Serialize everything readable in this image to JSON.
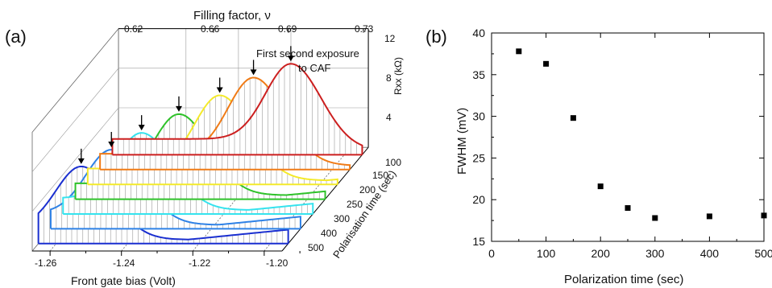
{
  "chart_data": [
    {
      "type": "line",
      "panel_label": "(a)",
      "top_axis_title": "Filling factor, ν",
      "top_ticks": [
        "0.62",
        "0.66",
        "0.69",
        "0.73"
      ],
      "xlabel": "Front gate bias (Volt)",
      "x_ticks": [
        "-1.26",
        "-1.24",
        "-1.22",
        "-1.20"
      ],
      "z_axis_label": "Rxx (kΩ)",
      "z_ticks": [
        "4",
        "8",
        "12"
      ],
      "depth_axis_label": "Polarisation time (sec)",
      "depth_ticks": [
        "100",
        "150",
        "200",
        "250",
        "300",
        "400",
        "500"
      ],
      "annotation": [
        "First second exposure",
        "to CAF"
      ],
      "series": [
        {
          "polarisation_time": 0,
          "color": "#cc1f1f",
          "peak_gate_bias": -1.215,
          "peak_rxx": 9.2
        },
        {
          "polarisation_time": 100,
          "color": "#f07b16",
          "peak_gate_bias": -1.222,
          "peak_rxx": 9.3
        },
        {
          "polarisation_time": 150,
          "color": "#f4ea2a",
          "peak_gate_bias": -1.228,
          "peak_rxx": 9.0
        },
        {
          "polarisation_time": 200,
          "color": "#2fc22a",
          "peak_gate_bias": -1.236,
          "peak_rxx": 8.6
        },
        {
          "polarisation_time": 250,
          "color": "#35e3ee",
          "peak_gate_bias": -1.243,
          "peak_rxx": 8.2
        },
        {
          "polarisation_time": 300,
          "color": "#2f82e6",
          "peak_gate_bias": -1.248,
          "peak_rxx": 8.0
        },
        {
          "polarisation_time": 400,
          "color": "#1a2fd0",
          "peak_gate_bias": -1.253,
          "peak_rxx": 7.8
        }
      ]
    },
    {
      "type": "scatter",
      "panel_label": "(b)",
      "xlabel": "Polarization time (sec)",
      "ylabel": "FWHM (mV)",
      "xlim": [
        0,
        500
      ],
      "ylim": [
        15,
        40
      ],
      "x_ticks": [
        0,
        100,
        200,
        300,
        400,
        500
      ],
      "y_ticks": [
        15,
        20,
        25,
        30,
        35,
        40
      ],
      "x": [
        50,
        100,
        150,
        200,
        250,
        300,
        400,
        500
      ],
      "y": [
        37.8,
        36.3,
        29.8,
        21.6,
        19.0,
        17.8,
        18.0,
        18.1
      ],
      "marker_color": "#000000"
    }
  ]
}
